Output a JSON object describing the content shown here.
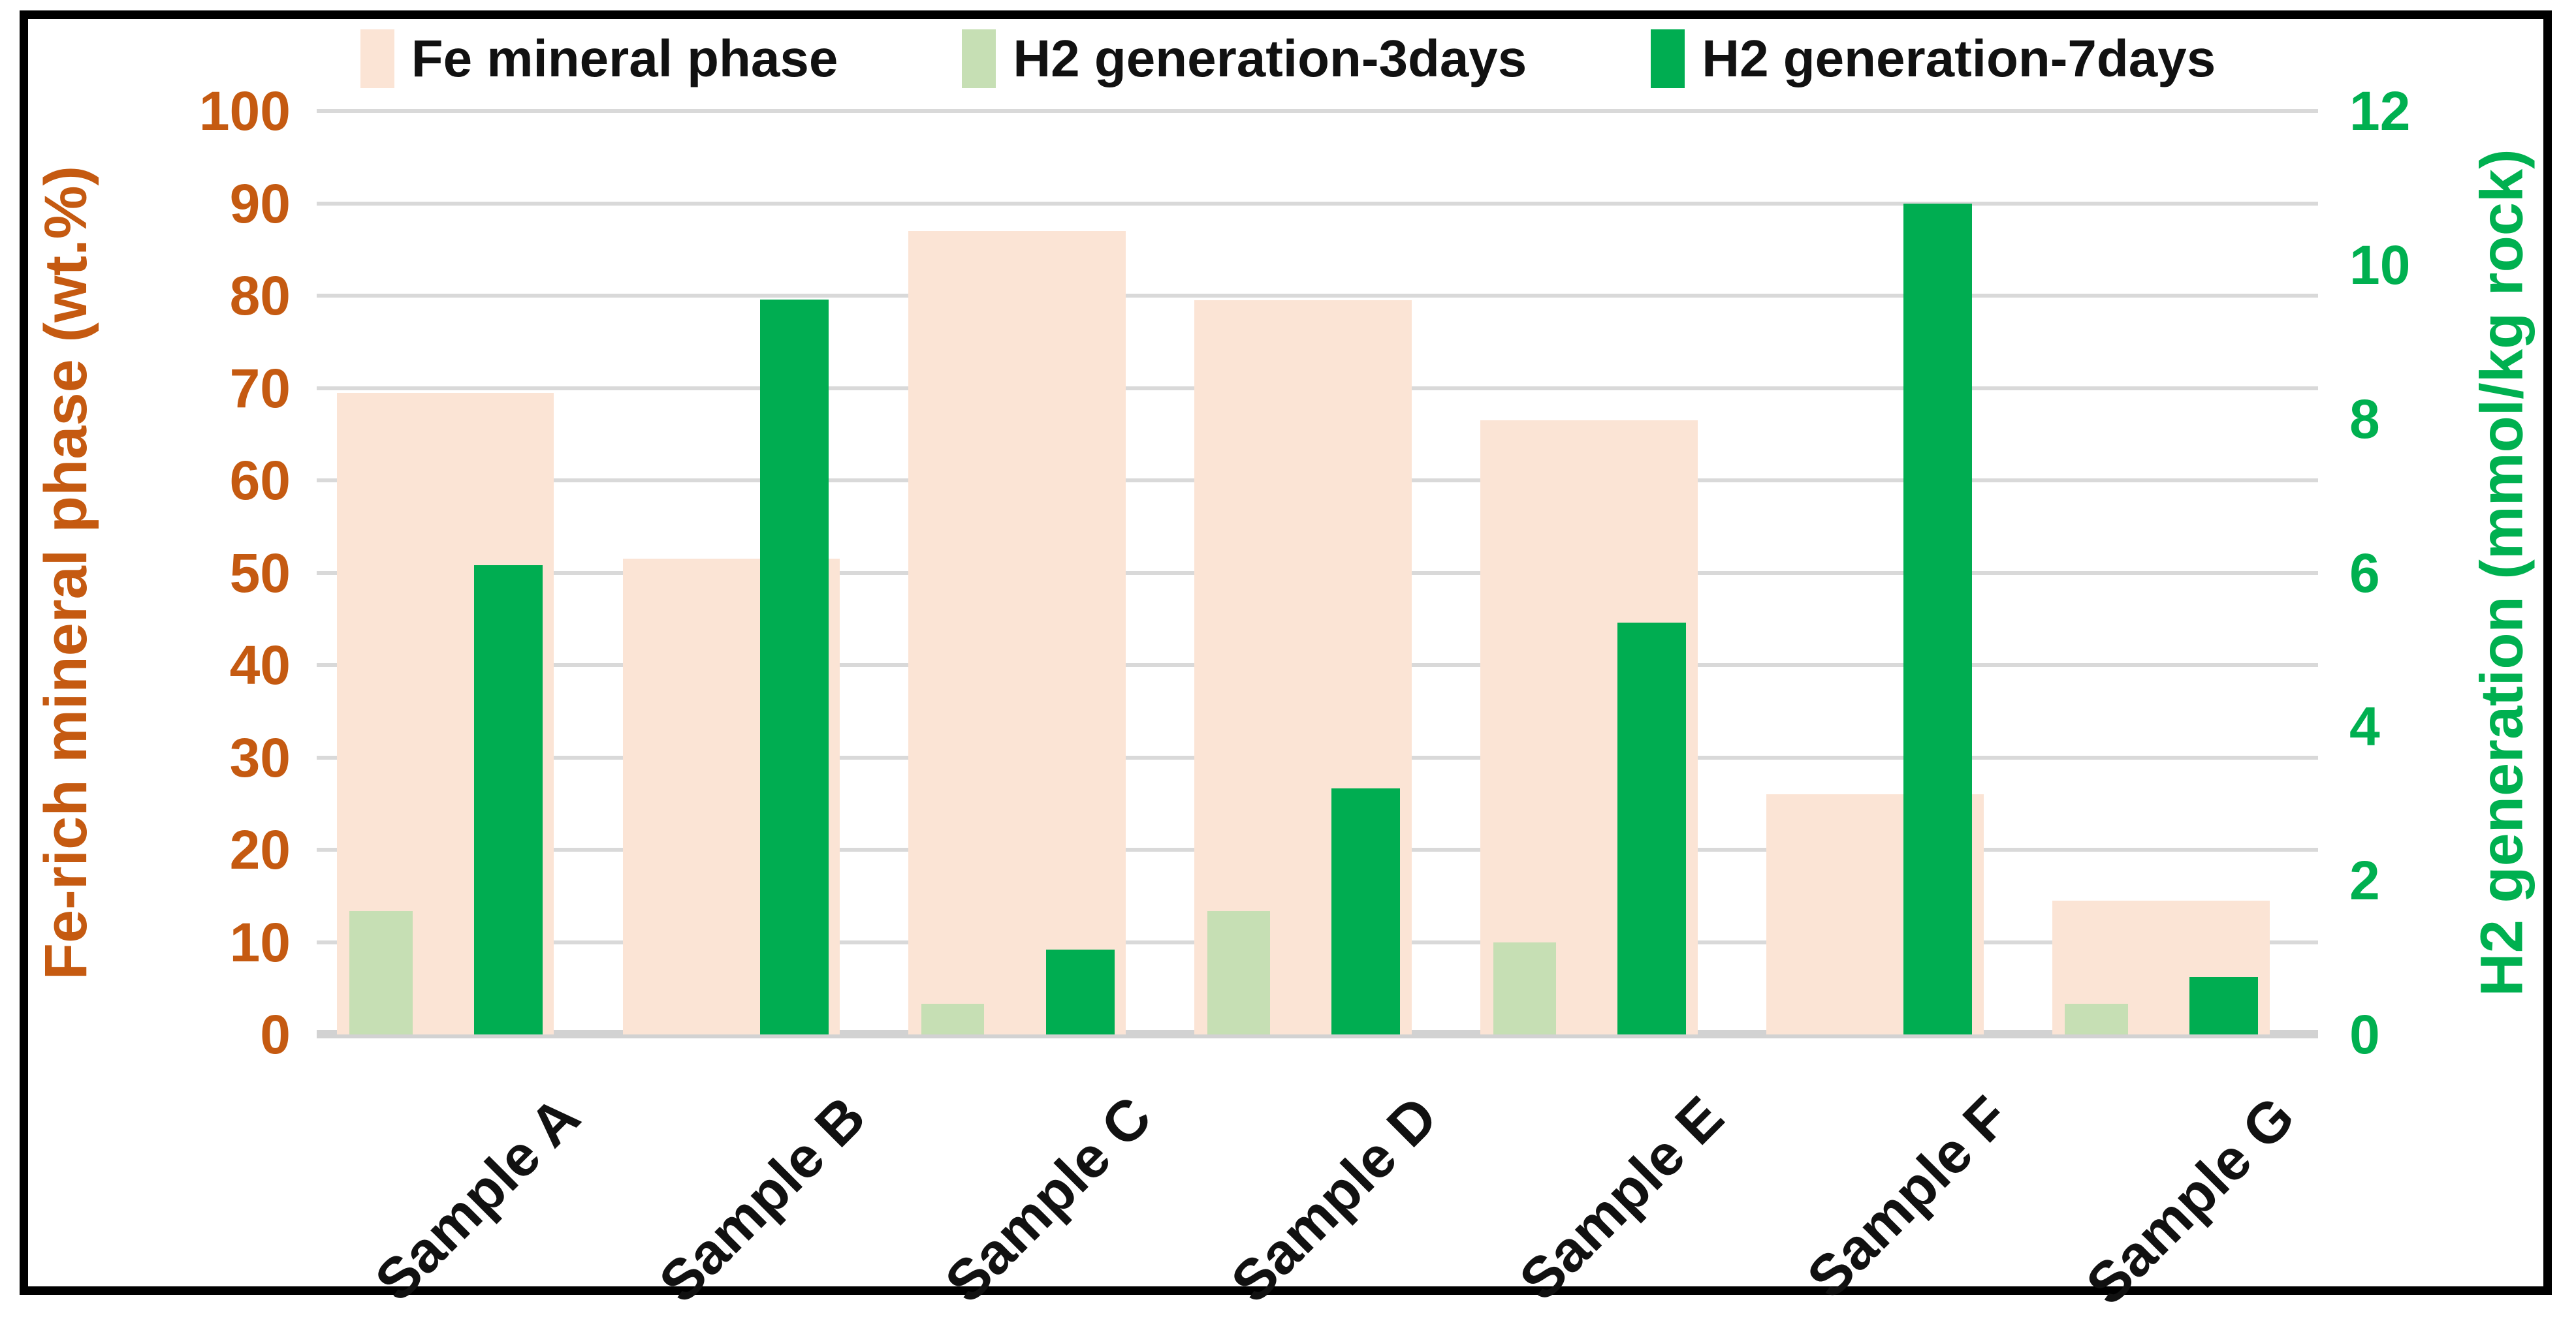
{
  "chart_data": {
    "type": "bar",
    "subtype": "dual-axis-overlapping-bars",
    "categories": [
      "Sample A",
      "Sample B",
      "Sample C",
      "Sample D",
      "Sample E",
      "Sample F",
      "Sample G"
    ],
    "series": [
      {
        "name": "Fe mineral phase",
        "axis": "left",
        "color": "#FBE4D5",
        "values": [
          69.5,
          51.5,
          87,
          79.5,
          66.5,
          26,
          14.5
        ]
      },
      {
        "name": "H2 generation-3days",
        "axis": "right",
        "color": "#C6DFB4",
        "values": [
          1.6,
          0,
          0.4,
          1.6,
          1.2,
          0,
          0.4
        ]
      },
      {
        "name": "H2 generation-7days",
        "axis": "right",
        "color": "#00AD51",
        "values": [
          6.1,
          9.55,
          1.1,
          3.2,
          5.35,
          10.8,
          0.75
        ]
      }
    ],
    "left_axis": {
      "label": "Fe-rich mineral phase (wt.%)",
      "min": 0,
      "max": 100,
      "tick_step": 10,
      "color": "#C55A11"
    },
    "right_axis": {
      "label": "H2 generation (mmol/kg rock)",
      "min": 0,
      "max": 12,
      "tick_step": 2,
      "color": "#00B050"
    },
    "grid": true,
    "gridline_color": "#D9D9D9",
    "axis_line_color": "#D2D2D2",
    "legend_position": "top",
    "x_label_rotation_deg": -45
  }
}
